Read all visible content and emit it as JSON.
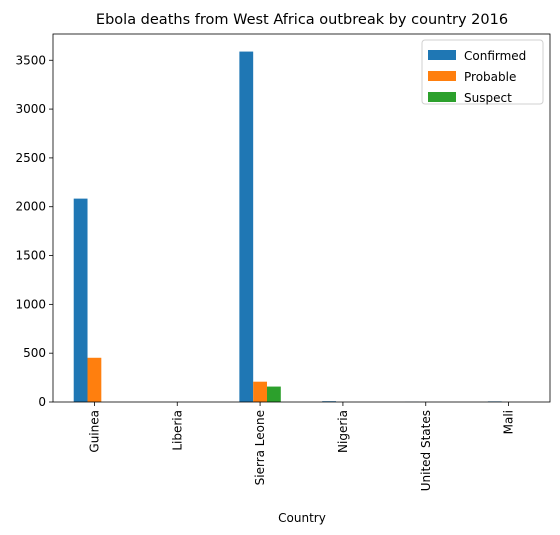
{
  "chart_data": {
    "type": "bar",
    "title": "Ebola deaths from West Africa outbreak by country 2016",
    "xlabel": "Country",
    "ylabel": "",
    "categories": [
      "Guinea",
      "Liberia",
      "Sierra Leone",
      "Nigeria",
      "United States",
      "Mali"
    ],
    "series": [
      {
        "name": "Confirmed",
        "color": "#1f77b4",
        "values": [
          2083,
          0,
          3589,
          8,
          1,
          6
        ]
      },
      {
        "name": "Probable",
        "color": "#ff7f0e",
        "values": [
          453,
          0,
          208,
          0,
          0,
          0
        ]
      },
      {
        "name": "Suspect",
        "color": "#2ca02c",
        "values": [
          0,
          0,
          158,
          0,
          0,
          0
        ]
      }
    ],
    "ylim": [
      0,
      3769
    ],
    "yticks": [
      0,
      500,
      1000,
      1500,
      2000,
      2500,
      3000,
      3500
    ],
    "grid": false,
    "legend": "top-right"
  }
}
